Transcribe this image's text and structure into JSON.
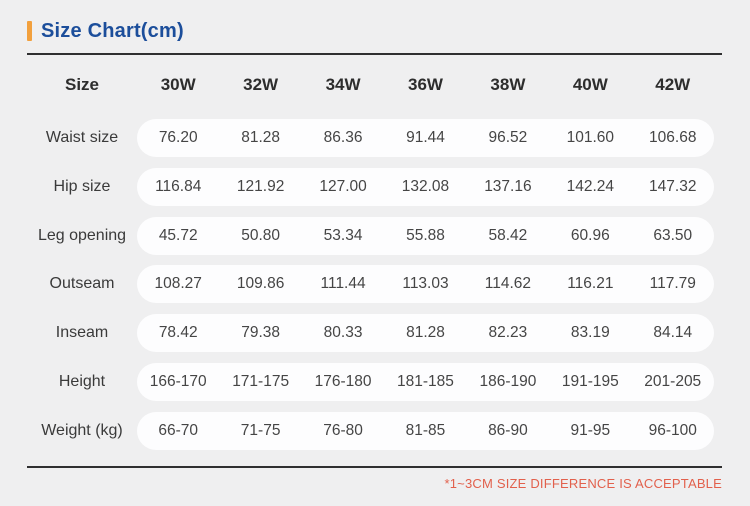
{
  "page": {
    "title": "Size Chart(cm)",
    "footnote": "*1~3CM SIZE DIFFERENCE IS ACCEPTABLE"
  },
  "colors": {
    "accent_orange": "#F2A03D",
    "title_blue": "#1C4E9B",
    "footnote_red": "#E2604C",
    "background": "#EFEFF0",
    "pill_white": "#FDFDFE",
    "divider_dark": "#2F2F30"
  },
  "chart_data": {
    "type": "table",
    "title": "Size Chart(cm)",
    "columns": [
      "Size",
      "30W",
      "32W",
      "34W",
      "36W",
      "38W",
      "40W",
      "42W"
    ],
    "rows": [
      {
        "label": "Waist size",
        "values": [
          "76.20",
          "81.28",
          "86.36",
          "91.44",
          "96.52",
          "101.60",
          "106.68"
        ]
      },
      {
        "label": "Hip size",
        "values": [
          "116.84",
          "121.92",
          "127.00",
          "132.08",
          "137.16",
          "142.24",
          "147.32"
        ]
      },
      {
        "label": "Leg opening",
        "values": [
          "45.72",
          "50.80",
          "53.34",
          "55.88",
          "58.42",
          "60.96",
          "63.50"
        ]
      },
      {
        "label": "Outseam",
        "values": [
          "108.27",
          "109.86",
          "111.44",
          "113.03",
          "114.62",
          "116.21",
          "117.79"
        ]
      },
      {
        "label": "Inseam",
        "values": [
          "78.42",
          "79.38",
          "80.33",
          "81.28",
          "82.23",
          "83.19",
          "84.14"
        ]
      },
      {
        "label": "Height",
        "values": [
          "166-170",
          "171-175",
          "176-180",
          "181-185",
          "186-190",
          "191-195",
          "201-205"
        ]
      },
      {
        "label": "Weight (kg)",
        "values": [
          "66-70",
          "71-75",
          "76-80",
          "81-85",
          "86-90",
          "91-95",
          "96-100"
        ]
      }
    ],
    "footnote": "*1~3CM SIZE DIFFERENCE IS ACCEPTABLE",
    "layout_hints": {
      "value_rows_on_white_pills": true,
      "header_grid": false
    }
  }
}
